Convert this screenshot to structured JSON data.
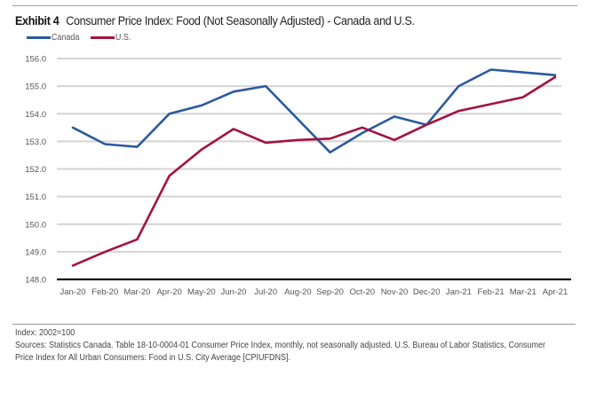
{
  "header": {
    "exhibit_label": "Exhibit 4",
    "title": "Consumer Price Index: Food (Not Seasonally Adjusted) - Canada and U.S."
  },
  "legend": [
    {
      "name": "Canada",
      "color": "#2a5a9e"
    },
    {
      "name": "U.S.",
      "color": "#a3123e"
    }
  ],
  "chart_data": {
    "type": "line",
    "title": "Consumer Price Index: Food (Not Seasonally Adjusted) - Canada and U.S.",
    "xlabel": "",
    "ylabel": "",
    "categories": [
      "Jan-20",
      "Feb-20",
      "Mar-20",
      "Apr-20",
      "May-20",
      "Jun-20",
      "Jul-20",
      "Aug-20",
      "Sep-20",
      "Oct-20",
      "Nov-20",
      "Dec-20",
      "Jan-21",
      "Feb-21",
      "Mar-21",
      "Apr-21"
    ],
    "series": [
      {
        "name": "Canada",
        "color": "#2a5a9e",
        "values": [
          153.5,
          152.9,
          152.8,
          154.0,
          154.3,
          154.8,
          155.0,
          153.8,
          152.6,
          153.3,
          153.9,
          153.6,
          155.0,
          155.6,
          155.5,
          155.4
        ]
      },
      {
        "name": "U.S.",
        "color": "#a3123e",
        "values": [
          148.5,
          149.0,
          149.45,
          151.75,
          152.7,
          153.45,
          152.95,
          153.05,
          153.1,
          153.5,
          153.05,
          153.6,
          154.1,
          154.35,
          154.6,
          155.33
        ]
      }
    ],
    "ylim": [
      148.0,
      156.0
    ],
    "yticks": [
      "148.0",
      "149.0",
      "150.0",
      "151.0",
      "152.0",
      "153.0",
      "154.0",
      "155.0",
      "156.0"
    ],
    "ytick_values": [
      148,
      149,
      150,
      151,
      152,
      153,
      154,
      155,
      156
    ],
    "grid": true,
    "legend_position": "top-left"
  },
  "footnotes": {
    "index_note": "Index: 2002=100",
    "sources_line1": "Sources: Statistics Canada. Table 18-10-0004-01 Consumer Price Index, monthly, not seasonally adjusted. U.S. Bureau of Labor Statistics, Consumer",
    "sources_line2": "Price Index for All Urban Consumers: Food in U.S. City Average [CPIUFDNS]."
  }
}
